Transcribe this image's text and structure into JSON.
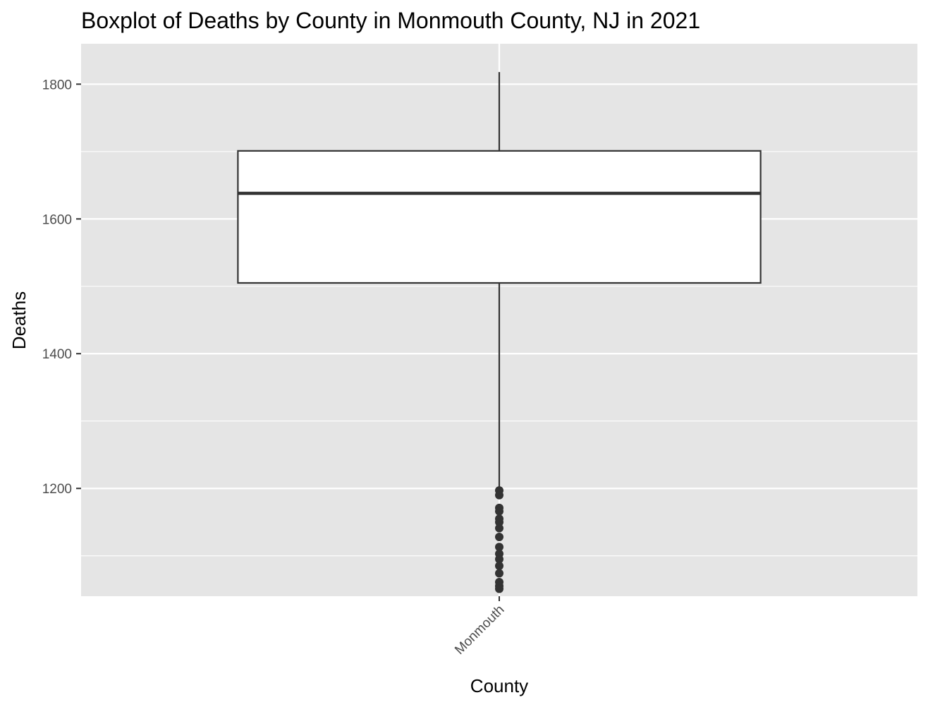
{
  "chart_data": {
    "type": "box",
    "title": "Boxplot of Deaths by County in Monmouth County, NJ in 2021",
    "xlabel": "County",
    "ylabel": "Deaths",
    "categories": [
      "Monmouth"
    ],
    "ylim": [
      1040,
      1860
    ],
    "yticks": [
      1200,
      1400,
      1600,
      1800
    ],
    "grid": true,
    "legend": "none",
    "box": {
      "category": "Monmouth",
      "whisker_low": 1202,
      "q1": 1505,
      "median": 1638,
      "q3": 1701,
      "whisker_high": 1818
    },
    "outliers": [
      1197,
      1190,
      1171,
      1166,
      1155,
      1150,
      1141,
      1128,
      1113,
      1103,
      1095,
      1085,
      1074,
      1061,
      1055,
      1051
    ],
    "colors": {
      "panel": "#e5e5e5",
      "grid_major": "#ffffff",
      "box_fill": "#ffffff",
      "box_stroke": "#333333",
      "outlier": "#333333"
    }
  }
}
